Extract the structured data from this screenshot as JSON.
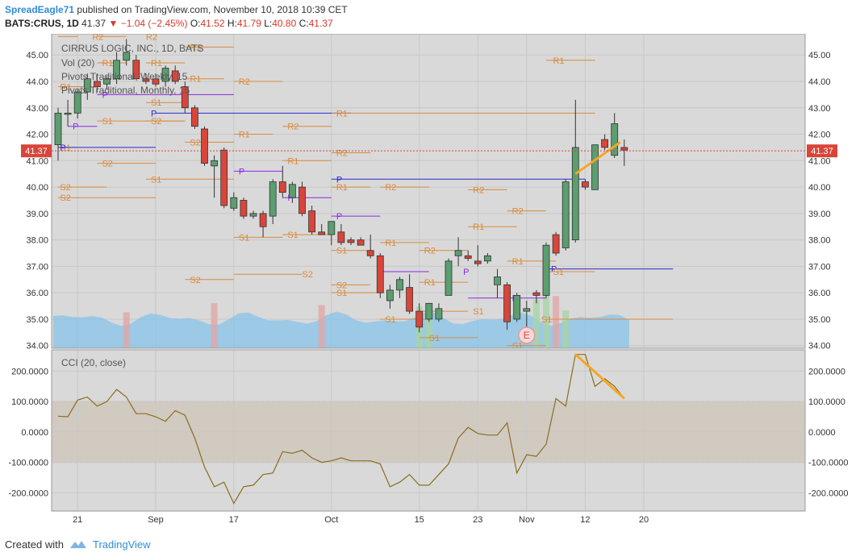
{
  "header": {
    "user": "SpreadEagle71",
    "published_text": "published on TradingView.com, November 10, 2018 10:39 CET",
    "symbol": "BATS:CRUS, 1D",
    "last": "41.37",
    "down_arrow": "▼",
    "change": "−1.04 (−2.45%)",
    "o_label": "O:",
    "o_value": "41.52",
    "h_label": "H:",
    "h_value": "41.79",
    "l_label": "L:",
    "l_value": "40.80",
    "c_label": "C:",
    "c_value": "41.37"
  },
  "legend": {
    "title": "CIRRUS LOGIC, INC., 1D, BATS",
    "vol": "Vol (20)",
    "pivots_weekly": "Pivots Traditional, Weekly, 15",
    "pivots_monthly": "Pivots Traditional, Monthly, 15",
    "cci": "CCI (20, close)"
  },
  "footer": {
    "created_with": "Created with",
    "brand": "TradingView"
  },
  "colors": {
    "up": "#5b9e6f",
    "down": "#d8453a",
    "pivot_orange": "#d98a3c",
    "pivot_blue": "#2b2bcf",
    "pivot_purple": "#8a2be2",
    "cci_line": "#8b6d1e",
    "trend_orange": "#f5a623",
    "price_tag": "#d8453a",
    "volume_band": "#87c3ea",
    "panel_bg": "#d9d9d9"
  },
  "chart_data": [
    {
      "type": "candlestick",
      "title": "CIRRUS LOGIC, INC., 1D, BATS",
      "ylim": [
        33.9,
        45.8
      ],
      "yticks": [
        "45.00",
        "44.00",
        "43.00",
        "42.00",
        "41.00",
        "40.00",
        "39.00",
        "38.00",
        "37.00",
        "36.00",
        "35.00",
        "34.00"
      ],
      "xticks": [
        {
          "label": "21",
          "i": 2
        },
        {
          "label": "Sep",
          "i": 10
        },
        {
          "label": "17",
          "i": 18
        },
        {
          "label": "Oct",
          "i": 28
        },
        {
          "label": "15",
          "i": 37
        },
        {
          "label": "23",
          "i": 43
        },
        {
          "label": "Nov",
          "i": 48
        },
        {
          "label": "12",
          "i": 54
        },
        {
          "label": "20",
          "i": 60
        }
      ],
      "last_price": "41.37",
      "event_marker": {
        "label": "E",
        "i": 48
      },
      "candles": [
        {
          "o": 41.6,
          "h": 43.0,
          "l": 41.0,
          "c": 42.8
        },
        {
          "o": 42.8,
          "h": 43.3,
          "l": 42.3,
          "c": 42.8
        },
        {
          "o": 42.8,
          "h": 43.7,
          "l": 42.6,
          "c": 43.6
        },
        {
          "o": 43.6,
          "h": 44.3,
          "l": 43.3,
          "c": 44.1
        },
        {
          "o": 44.0,
          "h": 44.3,
          "l": 43.6,
          "c": 43.8
        },
        {
          "o": 43.9,
          "h": 44.2,
          "l": 43.7,
          "c": 44.1
        },
        {
          "o": 44.1,
          "h": 45.1,
          "l": 43.9,
          "c": 44.8
        },
        {
          "o": 44.8,
          "h": 45.6,
          "l": 44.6,
          "c": 45.1
        },
        {
          "o": 44.8,
          "h": 45.0,
          "l": 44.1,
          "c": 44.1
        },
        {
          "o": 44.1,
          "h": 44.3,
          "l": 43.9,
          "c": 44.0
        },
        {
          "o": 44.1,
          "h": 44.3,
          "l": 43.8,
          "c": 43.9
        },
        {
          "o": 44.0,
          "h": 44.6,
          "l": 43.8,
          "c": 44.5
        },
        {
          "o": 44.4,
          "h": 44.6,
          "l": 43.9,
          "c": 44.0
        },
        {
          "o": 43.8,
          "h": 44.0,
          "l": 42.8,
          "c": 43.0
        },
        {
          "o": 43.0,
          "h": 43.1,
          "l": 42.2,
          "c": 42.3
        },
        {
          "o": 42.2,
          "h": 42.3,
          "l": 40.8,
          "c": 40.9
        },
        {
          "o": 40.8,
          "h": 41.2,
          "l": 39.6,
          "c": 41.0
        },
        {
          "o": 41.4,
          "h": 41.5,
          "l": 39.2,
          "c": 39.3
        },
        {
          "o": 39.2,
          "h": 39.8,
          "l": 39.1,
          "c": 39.6
        },
        {
          "o": 39.5,
          "h": 39.6,
          "l": 38.8,
          "c": 38.9
        },
        {
          "o": 38.9,
          "h": 39.1,
          "l": 38.8,
          "c": 39.0
        },
        {
          "o": 39.0,
          "h": 39.1,
          "l": 38.1,
          "c": 38.5
        },
        {
          "o": 38.9,
          "h": 40.3,
          "l": 38.6,
          "c": 40.2
        },
        {
          "o": 40.2,
          "h": 40.8,
          "l": 39.6,
          "c": 39.8
        },
        {
          "o": 39.6,
          "h": 40.2,
          "l": 39.4,
          "c": 40.1
        },
        {
          "o": 40.0,
          "h": 40.2,
          "l": 38.9,
          "c": 39.0
        },
        {
          "o": 39.1,
          "h": 39.3,
          "l": 38.2,
          "c": 38.3
        },
        {
          "o": 38.3,
          "h": 38.6,
          "l": 38.2,
          "c": 38.2
        },
        {
          "o": 38.2,
          "h": 38.7,
          "l": 37.8,
          "c": 38.7
        },
        {
          "o": 38.3,
          "h": 38.6,
          "l": 37.8,
          "c": 37.9
        },
        {
          "o": 38.0,
          "h": 38.1,
          "l": 37.8,
          "c": 37.9
        },
        {
          "o": 38.0,
          "h": 38.1,
          "l": 37.8,
          "c": 37.8
        },
        {
          "o": 37.6,
          "h": 38.2,
          "l": 37.3,
          "c": 37.4
        },
        {
          "o": 37.4,
          "h": 37.5,
          "l": 35.8,
          "c": 36.0
        },
        {
          "o": 35.7,
          "h": 36.3,
          "l": 35.4,
          "c": 36.1
        },
        {
          "o": 36.1,
          "h": 36.6,
          "l": 35.8,
          "c": 36.5
        },
        {
          "o": 36.2,
          "h": 36.7,
          "l": 35.2,
          "c": 35.3
        },
        {
          "o": 35.3,
          "h": 35.6,
          "l": 34.5,
          "c": 34.7
        },
        {
          "o": 35.0,
          "h": 35.6,
          "l": 34.9,
          "c": 35.6
        },
        {
          "o": 35.0,
          "h": 35.6,
          "l": 34.9,
          "c": 35.4
        },
        {
          "o": 35.9,
          "h": 37.3,
          "l": 35.9,
          "c": 37.2
        },
        {
          "o": 37.4,
          "h": 38.1,
          "l": 37.0,
          "c": 37.6
        },
        {
          "o": 37.4,
          "h": 37.6,
          "l": 37.2,
          "c": 37.3
        },
        {
          "o": 37.2,
          "h": 37.8,
          "l": 37.0,
          "c": 37.1
        },
        {
          "o": 37.2,
          "h": 37.5,
          "l": 37.1,
          "c": 37.4
        },
        {
          "o": 36.3,
          "h": 36.9,
          "l": 35.8,
          "c": 36.6
        },
        {
          "o": 36.3,
          "h": 36.4,
          "l": 34.6,
          "c": 34.9
        },
        {
          "o": 35.0,
          "h": 36.0,
          "l": 34.9,
          "c": 35.9
        },
        {
          "o": 35.3,
          "h": 35.7,
          "l": 34.7,
          "c": 35.4
        },
        {
          "o": 36.0,
          "h": 36.1,
          "l": 35.6,
          "c": 35.9
        },
        {
          "o": 35.9,
          "h": 37.9,
          "l": 35.8,
          "c": 37.8
        },
        {
          "o": 38.2,
          "h": 38.3,
          "l": 37.4,
          "c": 37.5
        },
        {
          "o": 37.7,
          "h": 40.3,
          "l": 37.6,
          "c": 40.2
        },
        {
          "o": 38.0,
          "h": 43.3,
          "l": 37.9,
          "c": 41.5
        },
        {
          "o": 40.2,
          "h": 40.3,
          "l": 39.9,
          "c": 40.0
        },
        {
          "o": 39.9,
          "h": 41.6,
          "l": 39.9,
          "c": 41.6
        },
        {
          "o": 41.8,
          "h": 42.0,
          "l": 41.4,
          "c": 41.5
        },
        {
          "o": 41.2,
          "h": 42.8,
          "l": 41.1,
          "c": 42.4
        },
        {
          "o": 41.5,
          "h": 41.8,
          "l": 40.8,
          "c": 41.4
        }
      ],
      "volume_bars": [
        {
          "i": 7,
          "v": 0.55,
          "dir": "down"
        },
        {
          "i": 16,
          "v": 0.8,
          "dir": "down"
        },
        {
          "i": 27,
          "v": 0.75,
          "dir": "down"
        },
        {
          "i": 37,
          "v": 0.7,
          "dir": "up"
        },
        {
          "i": 38,
          "v": 0.5,
          "dir": "up"
        },
        {
          "i": 49,
          "v": 0.9,
          "dir": "up"
        },
        {
          "i": 50,
          "v": 1.3,
          "dir": "up"
        },
        {
          "i": 51,
          "v": 1.0,
          "dir": "down"
        },
        {
          "i": 52,
          "v": 0.6,
          "dir": "up"
        }
      ],
      "pivot_levels": [
        {
          "label": "R2",
          "y": 45.7,
          "x0": 0,
          "x1": 2,
          "lx": 3.5,
          "color": "orange"
        },
        {
          "label": "R2",
          "y": 45.7,
          "x0": 4,
          "x1": 7,
          "lx": 9,
          "color": "orange"
        },
        {
          "label": "R1",
          "y": 44.7,
          "x0": 4,
          "x1": 7,
          "lx": 4.5,
          "color": "orange"
        },
        {
          "label": "R1",
          "y": 44.7,
          "x0": 9,
          "x1": 13,
          "lx": 9.5,
          "color": "orange"
        },
        {
          "label": "R2",
          "y": 45.3,
          "x0": 13,
          "x1": 18,
          "lx": 13.5,
          "color": "orange"
        },
        {
          "label": "R2",
          "y": 44.0,
          "x0": 18,
          "x1": 23,
          "lx": 18.5,
          "color": "orange"
        },
        {
          "label": "R1",
          "y": 43.8,
          "x0": 0,
          "x1": 3,
          "lx": 0.2,
          "color": "orange"
        },
        {
          "label": "R1",
          "y": 44.1,
          "x0": 13,
          "x1": 17,
          "lx": 13.5,
          "color": "orange"
        },
        {
          "label": "P",
          "y": 43.5,
          "x0": 4,
          "x1": 18,
          "lx": 4.5,
          "color": "purple"
        },
        {
          "label": "S1",
          "y": 43.2,
          "x0": 9,
          "x1": 13,
          "lx": 9.5,
          "color": "orange"
        },
        {
          "label": "P",
          "y": 42.8,
          "x0": 10,
          "x1": 30,
          "lx": 9.5,
          "color": "blue"
        },
        {
          "label": "S1",
          "y": 42.5,
          "x0": 4,
          "x1": 13,
          "lx": 4.5,
          "color": "orange"
        },
        {
          "label": "S2",
          "y": 42.5,
          "x0": 9,
          "x1": 13,
          "lx": 9.5,
          "color": "orange"
        },
        {
          "label": "P",
          "y": 42.3,
          "x0": 1,
          "x1": 4,
          "lx": 1.5,
          "color": "purple"
        },
        {
          "label": "R1",
          "y": 42.8,
          "x0": 28,
          "x1": 55,
          "lx": 28.5,
          "color": "orange"
        },
        {
          "label": "R2",
          "y": 42.3,
          "x0": 23,
          "x1": 28,
          "lx": 23.5,
          "color": "orange"
        },
        {
          "label": "R1",
          "y": 42.0,
          "x0": 18,
          "x1": 22,
          "lx": 18.5,
          "color": "orange"
        },
        {
          "label": "S2",
          "y": 41.7,
          "x0": 13,
          "x1": 18,
          "lx": 13.5,
          "color": "orange"
        },
        {
          "label": "S1",
          "y": 41.5,
          "x0": 0,
          "x1": 2,
          "lx": 0.2,
          "color": "orange"
        },
        {
          "label": "P",
          "y": 41.5,
          "x0": 0,
          "x1": 10,
          "lx": 0.2,
          "color": "blue"
        },
        {
          "label": "R2",
          "y": 41.3,
          "x0": 28,
          "x1": 32,
          "lx": 28.5,
          "color": "orange"
        },
        {
          "label": "R1",
          "y": 41.0,
          "x0": 23,
          "x1": 28,
          "lx": 23.5,
          "color": "orange"
        },
        {
          "label": "S2",
          "y": 40.9,
          "x0": 4,
          "x1": 10,
          "lx": 4.5,
          "color": "orange"
        },
        {
          "label": "S1",
          "y": 40.3,
          "x0": 9,
          "x1": 18,
          "lx": 9.5,
          "color": "orange"
        },
        {
          "label": "P",
          "y": 40.6,
          "x0": 18,
          "x1": 23,
          "lx": 18.5,
          "color": "purple"
        },
        {
          "label": "P",
          "y": 40.3,
          "x0": 28,
          "x1": 54,
          "lx": 28.5,
          "color": "blue"
        },
        {
          "label": "S2",
          "y": 40.0,
          "x0": 0,
          "x1": 5,
          "lx": 0.2,
          "color": "orange"
        },
        {
          "label": "R1",
          "y": 40.0,
          "x0": 28,
          "x1": 32,
          "lx": 28.5,
          "color": "orange"
        },
        {
          "label": "R2",
          "y": 40.0,
          "x0": 33,
          "x1": 38,
          "lx": 33.5,
          "color": "orange"
        },
        {
          "label": "R2",
          "y": 39.9,
          "x0": 42,
          "x1": 46,
          "lx": 42.5,
          "color": "orange"
        },
        {
          "label": "P",
          "y": 39.6,
          "x0": 23,
          "x1": 28,
          "lx": 23.5,
          "color": "purple"
        },
        {
          "label": "S2",
          "y": 39.6,
          "x0": 0,
          "x1": 10,
          "lx": 0.2,
          "color": "orange"
        },
        {
          "label": "P",
          "y": 38.9,
          "x0": 28,
          "x1": 33,
          "lx": 28.5,
          "color": "purple"
        },
        {
          "label": "R2",
          "y": 39.1,
          "x0": 46,
          "x1": 50,
          "lx": 46.5,
          "color": "orange"
        },
        {
          "label": "R1",
          "y": 38.5,
          "x0": 42,
          "x1": 47,
          "lx": 42.5,
          "color": "orange"
        },
        {
          "label": "S1",
          "y": 38.1,
          "x0": 18,
          "x1": 23,
          "lx": 18.5,
          "color": "orange"
        },
        {
          "label": "S1",
          "y": 38.2,
          "x0": 23,
          "x1": 28,
          "lx": 23.5,
          "color": "orange"
        },
        {
          "label": "R1",
          "y": 37.9,
          "x0": 33,
          "x1": 38,
          "lx": 33.5,
          "color": "orange"
        },
        {
          "label": "S1",
          "y": 37.6,
          "x0": 28,
          "x1": 32,
          "lx": 28.5,
          "color": "orange"
        },
        {
          "label": "R2",
          "y": 37.6,
          "x0": 37,
          "x1": 42,
          "lx": 37.5,
          "color": "orange"
        },
        {
          "label": "R1",
          "y": 37.2,
          "x0": 46,
          "x1": 51,
          "lx": 46.5,
          "color": "orange"
        },
        {
          "label": "P",
          "y": 36.9,
          "x0": 50,
          "x1": 63,
          "lx": 50.5,
          "color": "blue"
        },
        {
          "label": "P",
          "y": 36.8,
          "x0": 33,
          "x1": 38,
          "lx": 41.5,
          "color": "purple"
        },
        {
          "label": "S2",
          "y": 36.7,
          "x0": 18,
          "x1": 25,
          "lx": 25,
          "color": "orange"
        },
        {
          "label": "S1",
          "y": 36.8,
          "x0": 50,
          "x1": 55,
          "lx": 50.7,
          "color": "orange"
        },
        {
          "label": "R1",
          "y": 36.4,
          "x0": 37,
          "x1": 42,
          "lx": 37.5,
          "color": "orange"
        },
        {
          "label": "S2",
          "y": 36.5,
          "x0": 13,
          "x1": 18,
          "lx": 13.5,
          "color": "orange"
        },
        {
          "label": "S2",
          "y": 36.3,
          "x0": 28,
          "x1": 32,
          "lx": 28.5,
          "color": "orange"
        },
        {
          "label": "S1",
          "y": 36.0,
          "x0": 28,
          "x1": 33,
          "lx": 28.5,
          "color": "orange"
        },
        {
          "label": "P",
          "y": 35.8,
          "x0": 42,
          "x1": 50,
          "lx": 46.5,
          "color": "purple"
        },
        {
          "label": "S1",
          "y": 35.3,
          "x0": 37,
          "x1": 42,
          "lx": 42.5,
          "color": "orange"
        },
        {
          "label": "S1",
          "y": 35.0,
          "x0": 33,
          "x1": 38,
          "lx": 33.5,
          "color": "orange"
        },
        {
          "label": "S1",
          "y": 35.0,
          "x0": 50,
          "x1": 63,
          "lx": 49.5,
          "color": "orange"
        },
        {
          "label": "S1",
          "y": 34.3,
          "x0": 37,
          "x1": 43,
          "lx": 38,
          "color": "orange"
        },
        {
          "label": "S1",
          "y": 34.0,
          "x0": 46,
          "x1": 50,
          "lx": 46.5,
          "color": "orange"
        },
        {
          "label": "R1",
          "y": 44.8,
          "x0": 50,
          "x1": 55,
          "lx": 50.7,
          "color": "orange"
        }
      ]
    },
    {
      "type": "line",
      "title": "CCI (20, close)",
      "ylim": [
        -260,
        270
      ],
      "yticks": [
        "200.0000",
        "100.0000",
        "0.0000",
        "-100.0000",
        "-200.0000"
      ],
      "band": [
        -100,
        100
      ],
      "values": [
        52,
        50,
        105,
        115,
        85,
        100,
        140,
        115,
        60,
        60,
        50,
        35,
        70,
        55,
        -20,
        -115,
        -180,
        -165,
        -235,
        -180,
        -175,
        -140,
        -135,
        -65,
        -70,
        -60,
        -85,
        -100,
        -95,
        -85,
        -95,
        -95,
        -95,
        -105,
        -180,
        -165,
        -140,
        -175,
        -175,
        -140,
        -105,
        -20,
        15,
        -5,
        -10,
        -10,
        30,
        -135,
        -75,
        -80,
        -40,
        110,
        85,
        255,
        255,
        150,
        175,
        150,
        110
      ],
      "trendline": [
        [
          53,
          255
        ],
        [
          58,
          110
        ]
      ]
    }
  ]
}
